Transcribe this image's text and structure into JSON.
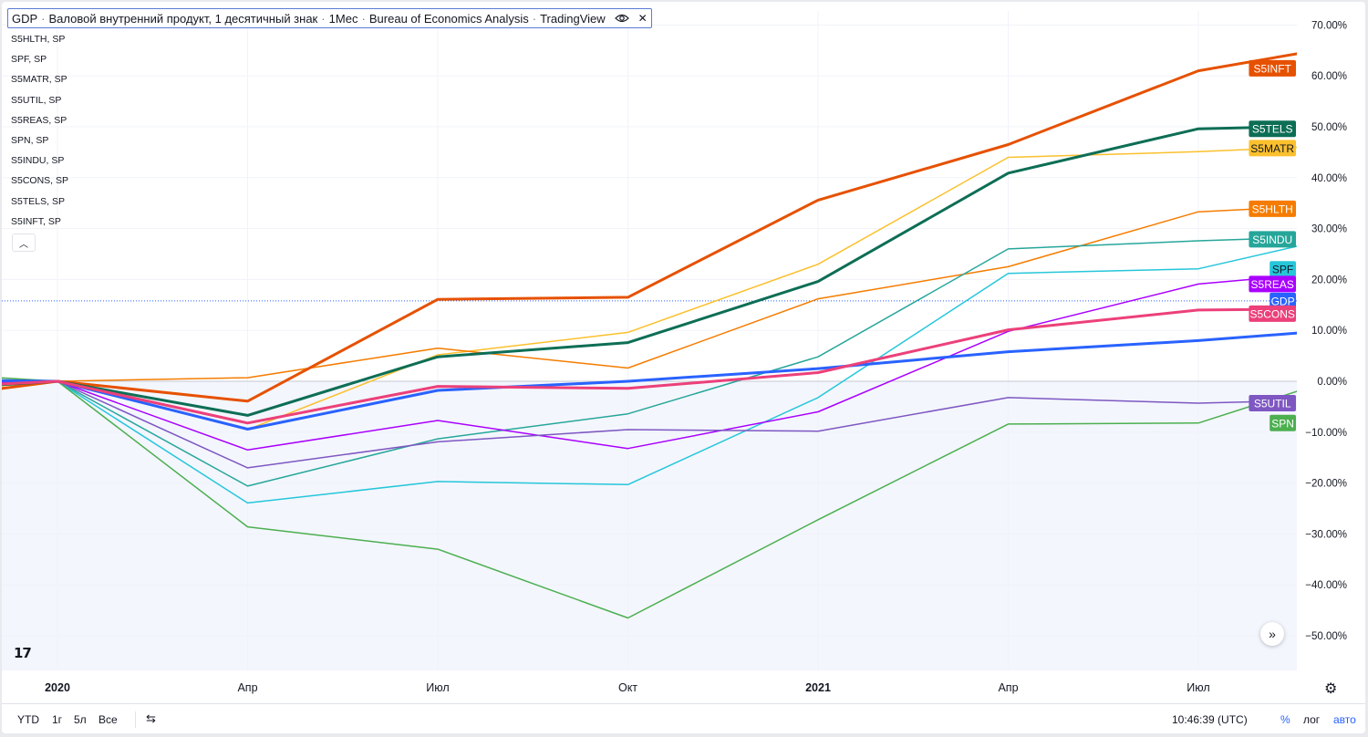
{
  "title_bar": {
    "symbol": "GDP",
    "description": "Валовой внутренний продукт, 1 десятичный знак",
    "interval": "1Мес",
    "source": "Bureau of Economics Analysis",
    "platform": "TradingView"
  },
  "legend_items": [
    "S5HLTH, SP",
    "SPF, SP",
    "S5MATR, SP",
    "S5UTIL, SP",
    "S5REAS, SP",
    "SPN, SP",
    "S5INDU, SP",
    "S5CONS, SP",
    "S5TELS, SP",
    "S5INFT, SP"
  ],
  "bottom_bar": {
    "ranges": [
      "YTD",
      "1г",
      "5л",
      "Все"
    ],
    "time": "10:46:39 (UTC)",
    "percent_label": "%",
    "log_label": "лог",
    "auto_label": "авто"
  },
  "chart_data": {
    "type": "line",
    "x_ticks": [
      {
        "x": "2020-01",
        "label": "2020",
        "bold": true
      },
      {
        "x": "2020-04",
        "label": "Апр",
        "bold": false
      },
      {
        "x": "2020-07",
        "label": "Июл",
        "bold": false
      },
      {
        "x": "2020-10",
        "label": "Окт",
        "bold": false
      },
      {
        "x": "2021-01",
        "label": "2021",
        "bold": true
      },
      {
        "x": "2021-04",
        "label": "Апр",
        "bold": false
      },
      {
        "x": "2021-07",
        "label": "Июл",
        "bold": false
      }
    ],
    "y_ticks": [
      "70.00%",
      "60.00%",
      "50.00%",
      "40.00%",
      "30.00%",
      "20.00%",
      "10.00%",
      "0.00%",
      "−10.00%",
      "−20.00%",
      "−30.00%",
      "−40.00%",
      "−50.00%"
    ],
    "y_tick_values": [
      70,
      60,
      50,
      40,
      30,
      20,
      10,
      0,
      -10,
      -20,
      -30,
      -40,
      -50
    ],
    "ylim": [
      -57.5,
      72
    ],
    "xlim": [
      "2019-11",
      "2021-09"
    ],
    "reference_line_value": 15.8,
    "series": [
      {
        "name": "S5INFT",
        "color": "#e65100",
        "width": 3,
        "label_text_color": "#ffffff",
        "x": [
          "2019-11",
          "2020-01",
          "2020-04",
          "2020-07",
          "2020-10",
          "2021-01",
          "2021-04",
          "2021-07",
          "2021-09"
        ],
        "values": [
          -3.2,
          0,
          -3.9,
          16.1,
          16.5,
          35.6,
          46.5,
          61.0,
          65.3
        ],
        "label_value": 61.5
      },
      {
        "name": "S5TELS",
        "color": "#0d6e55",
        "width": 3,
        "label_text_color": "#ffffff",
        "x": [
          "2019-11",
          "2020-01",
          "2020-04",
          "2020-07",
          "2020-10",
          "2021-01",
          "2021-04",
          "2021-07",
          "2021-08"
        ],
        "values": [
          -1.5,
          0,
          -6.7,
          4.8,
          7.6,
          19.6,
          40.9,
          49.6,
          49.9
        ],
        "label_value": 49.6
      },
      {
        "name": "S5MATR",
        "color": "#fbc02d",
        "width": 1.5,
        "label_text_color": "#131722",
        "x": [
          "2019-11",
          "2020-01",
          "2020-04",
          "2020-07",
          "2020-10",
          "2021-01",
          "2021-04",
          "2021-07",
          "2021-09"
        ],
        "values": [
          -2.0,
          0,
          -9.5,
          5.2,
          9.6,
          23.0,
          44.0,
          45.1,
          46.2
        ],
        "label_value": 45.8
      },
      {
        "name": "S5HLTH",
        "color": "#f57c00",
        "width": 1.5,
        "label_text_color": "#ffffff",
        "x": [
          "2019-11",
          "2020-01",
          "2020-04",
          "2020-07",
          "2020-10",
          "2021-01",
          "2021-04",
          "2021-07",
          "2021-08"
        ],
        "values": [
          -1.0,
          0,
          0.7,
          6.5,
          2.6,
          16.2,
          22.5,
          33.3,
          33.9
        ],
        "label_value": 33.9
      },
      {
        "name": "S5INDU",
        "color": "#26a69a",
        "width": 1.5,
        "label_text_color": "#ffffff",
        "x": [
          "2019-11",
          "2020-01",
          "2020-04",
          "2020-07",
          "2020-10",
          "2021-01",
          "2021-04",
          "2021-07",
          "2021-08"
        ],
        "values": [
          -1.5,
          0,
          -20.6,
          -11.3,
          -6.4,
          4.8,
          26.0,
          27.6,
          28.0
        ],
        "label_value": 27.9
      },
      {
        "name": "SPF",
        "color": "#26c6da",
        "width": 1.5,
        "label_text_color": "#131722",
        "x": [
          "2019-11",
          "2020-01",
          "2020-04",
          "2020-07",
          "2020-10",
          "2021-01",
          "2021-04",
          "2021-07",
          "2021-09"
        ],
        "values": [
          -1.3,
          0,
          -23.9,
          -19.7,
          -20.3,
          -3.2,
          21.2,
          22.1,
          27.8
        ],
        "label_value": 22.0
      },
      {
        "name": "S5REAS",
        "color": "#aa00ff",
        "width": 1.5,
        "label_text_color": "#ffffff",
        "x": [
          "2019-11",
          "2020-01",
          "2020-04",
          "2020-07",
          "2020-10",
          "2021-01",
          "2021-04",
          "2021-07",
          "2021-08"
        ],
        "values": [
          -0.5,
          0,
          -13.5,
          -7.7,
          -13.2,
          -6.0,
          9.8,
          19.1,
          20.2
        ],
        "label_value": 19.1
      },
      {
        "name": "GDP",
        "color": "#2962ff",
        "width": 3,
        "label_text_color": "#ffffff",
        "x": [
          "2019-11",
          "2020-01",
          "2020-04",
          "2020-07",
          "2020-10",
          "2021-01",
          "2021-04",
          "2021-07",
          "2021-09"
        ],
        "values": [
          0.3,
          0,
          -9.4,
          -1.8,
          0.0,
          2.5,
          5.8,
          8.0,
          9.9
        ],
        "label_value": 15.8
      },
      {
        "name": "S5CONS",
        "color": "#ec407a",
        "width": 3,
        "label_text_color": "#ffffff",
        "x": [
          "2019-11",
          "2020-01",
          "2020-04",
          "2020-07",
          "2020-10",
          "2021-01",
          "2021-04",
          "2021-07",
          "2021-08"
        ],
        "values": [
          -1.2,
          0,
          -8.2,
          -1.0,
          -1.4,
          1.7,
          10.1,
          14.0,
          14.1
        ],
        "label_value": 13.8
      },
      {
        "name": "S5UTIL",
        "color": "#7e57c2",
        "width": 1.5,
        "label_text_color": "#ffffff",
        "x": [
          "2019-11",
          "2020-01",
          "2020-04",
          "2020-07",
          "2020-10",
          "2021-01",
          "2021-04",
          "2021-07",
          "2021-08"
        ],
        "values": [
          -1.2,
          0,
          -17.0,
          -11.9,
          -9.5,
          -9.8,
          -3.2,
          -4.3,
          -4.0
        ],
        "label_value": -4.3
      },
      {
        "name": "SPN",
        "color": "#4caf50",
        "width": 1.5,
        "label_text_color": "#ffffff",
        "x": [
          "2019-11",
          "2020-01",
          "2020-04",
          "2020-07",
          "2020-10",
          "2021-01",
          "2021-04",
          "2021-07",
          "2021-09"
        ],
        "values": [
          1.5,
          0,
          -28.6,
          -33.0,
          -46.5,
          -27.2,
          -8.4,
          -8.2,
          -0.2
        ],
        "label_value": -8.2
      }
    ]
  }
}
